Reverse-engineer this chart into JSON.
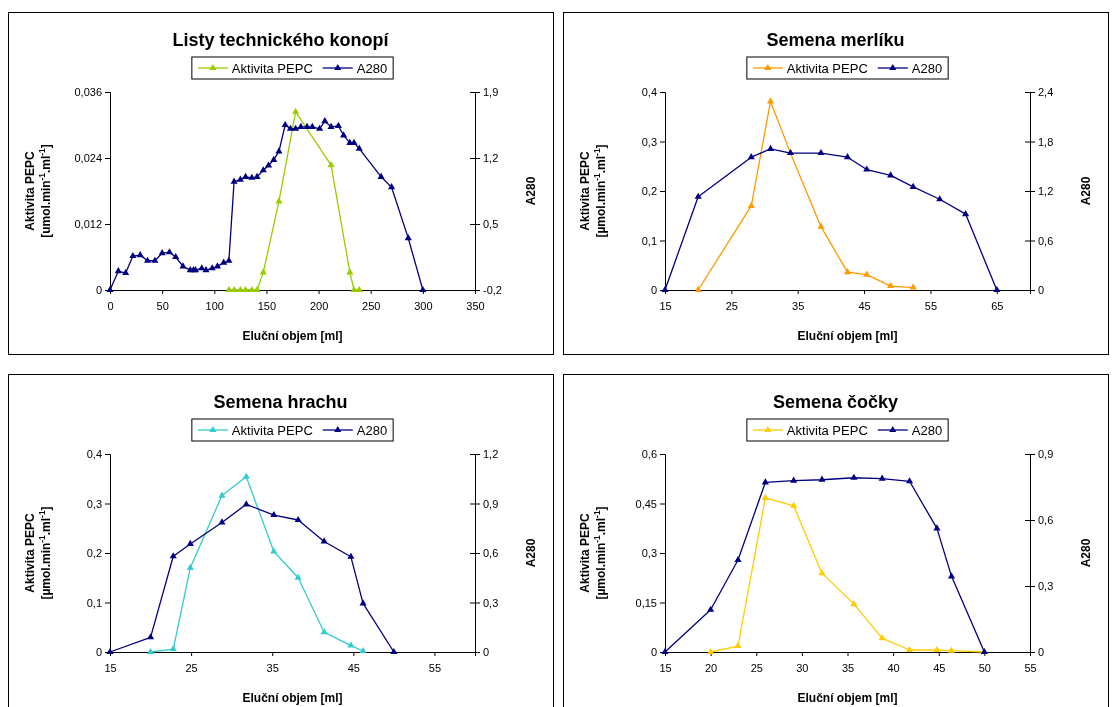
{
  "chart_data": [
    {
      "type": "line",
      "title": "Listy technického konopí",
      "xlabel": "Eluční objem [ml]",
      "ylabel": "Aktivita PEPC\n[umol.min$^{-1}$.ml$^{-1}$]",
      "y2label": "A280",
      "xlim": [
        0,
        350
      ],
      "xticks": [
        0,
        50,
        100,
        150,
        200,
        250,
        300,
        350
      ],
      "ylim": [
        0,
        0.036
      ],
      "yticks": [
        {
          "value": 0,
          "label": "0"
        },
        {
          "value": 0.012,
          "label": "0,012"
        },
        {
          "value": 0.024,
          "label": "0,024"
        },
        {
          "value": 0.036,
          "label": "0,036"
        }
      ],
      "y2lim": [
        -0.2,
        1.9
      ],
      "y2ticks": [
        {
          "value": -0.2,
          "label": "-0,2"
        },
        {
          "value": 0.5,
          "label": "0,5"
        },
        {
          "value": 1.2,
          "label": "1,2"
        },
        {
          "value": 1.9,
          "label": "1,9"
        }
      ],
      "legend": "top",
      "marker": "triangle",
      "grid": false,
      "series": [
        {
          "name": "Aktivita PEPC",
          "color": "#99cc00",
          "x": [
            114,
            119,
            125,
            130,
            136,
            141,
            147,
            162,
            178,
            212,
            230,
            234,
            239
          ],
          "values": [
            0,
            0,
            0,
            0,
            0,
            0,
            0.0032,
            0.0161,
            0.0324,
            0.0227,
            0.0032,
            0,
            0
          ]
        },
        {
          "name": "A280",
          "color": "#000080",
          "axis": "y2",
          "x": [
            0,
            8,
            15,
            22,
            29,
            36,
            43,
            50,
            57,
            63,
            70,
            77,
            80,
            82,
            88,
            92,
            98,
            103,
            109,
            114,
            119,
            125,
            130,
            136,
            141,
            147,
            152,
            157,
            162,
            168,
            173,
            178,
            183,
            189,
            194,
            201,
            206,
            212,
            219,
            224,
            230,
            234,
            239,
            260,
            270,
            286,
            300
          ],
          "values": [
            -0.2,
            0,
            -0.02,
            0.16,
            0.17,
            0.11,
            0.11,
            0.19,
            0.2,
            0.15,
            0.05,
            0.01,
            0.01,
            0.01,
            0.03,
            0.01,
            0.03,
            0.05,
            0.09,
            0.11,
            0.95,
            0.97,
            1,
            0.99,
            1,
            1.07,
            1.12,
            1.18,
            1.27,
            1.55,
            1.51,
            1.51,
            1.53,
            1.53,
            1.53,
            1.51,
            1.59,
            1.53,
            1.54,
            1.44,
            1.36,
            1.36,
            1.3,
            1,
            0.89,
            0.35,
            -0.2
          ]
        }
      ]
    },
    {
      "type": "line",
      "title": "Semena merlíku",
      "xlabel": "Eluční objem [ml]",
      "ylabel": "Aktivita PEPC\n[µmol.min$^{-1}$.ml$^{-1}$]",
      "y2label": "A280",
      "xlim": [
        15,
        70
      ],
      "xticks": [
        15,
        25,
        35,
        45,
        55,
        65
      ],
      "ylim": [
        0,
        0.4
      ],
      "yticks": [
        {
          "value": 0,
          "label": "0"
        },
        {
          "value": 0.1,
          "label": "0,1"
        },
        {
          "value": 0.2,
          "label": "0,2"
        },
        {
          "value": 0.3,
          "label": "0,3"
        },
        {
          "value": 0.4,
          "label": "0,4"
        }
      ],
      "y2lim": [
        0,
        2.4
      ],
      "y2ticks": [
        {
          "value": 0,
          "label": "0"
        },
        {
          "value": 0.6,
          "label": "0,6"
        },
        {
          "value": 1.2,
          "label": "1,2"
        },
        {
          "value": 1.8,
          "label": "1,8"
        },
        {
          "value": 2.4,
          "label": "2,4"
        }
      ],
      "legend": "top",
      "marker": "triangle",
      "grid": false,
      "series": [
        {
          "name": "Aktivita PEPC",
          "color": "#ff9900",
          "x": [
            20,
            28,
            30.9,
            33.9,
            38.5,
            42.5,
            45.4,
            49,
            52.4
          ],
          "values": [
            0,
            0.17,
            0.381,
            0.277,
            0.128,
            0.036,
            0.031,
            0.008,
            0.005
          ]
        },
        {
          "name": "A280",
          "color": "#000080",
          "axis": "y2",
          "x": [
            15,
            20,
            28,
            30.9,
            33.9,
            38.5,
            42.5,
            45.4,
            49,
            52.4,
            56.4,
            60.3,
            65
          ],
          "values": [
            0,
            1.13,
            1.61,
            1.71,
            1.66,
            1.66,
            1.61,
            1.46,
            1.39,
            1.25,
            1.1,
            0.92,
            0
          ]
        }
      ]
    },
    {
      "type": "line",
      "title": "Semena hrachu",
      "xlabel": "Eluční objem [ml]",
      "ylabel": "Aktivita PEPC\n[µmol.min$^{-1}$.ml$^{-1}$]",
      "y2label": "A280",
      "xlim": [
        15,
        60
      ],
      "xticks": [
        15,
        25,
        35,
        45,
        55
      ],
      "ylim": [
        0,
        0.4
      ],
      "yticks": [
        {
          "value": 0,
          "label": "0"
        },
        {
          "value": 0.1,
          "label": "0,1"
        },
        {
          "value": 0.2,
          "label": "0,2"
        },
        {
          "value": 0.3,
          "label": "0,3"
        },
        {
          "value": 0.4,
          "label": "0,4"
        }
      ],
      "y2lim": [
        0,
        1.2
      ],
      "y2ticks": [
        {
          "value": 0,
          "label": "0"
        },
        {
          "value": 0.3,
          "label": "0,3"
        },
        {
          "value": 0.6,
          "label": "0,6"
        },
        {
          "value": 0.9,
          "label": "0,9"
        },
        {
          "value": 1.2,
          "label": "1,2"
        }
      ],
      "legend": "top",
      "marker": "triangle",
      "grid": false,
      "series": [
        {
          "name": "Aktivita PEPC",
          "color": "#33cccc",
          "x": [
            20,
            22.8,
            24.9,
            28.8,
            31.8,
            35.2,
            38.2,
            41.4,
            44.7,
            46.2
          ],
          "values": [
            0,
            0.006,
            0.17,
            0.316,
            0.354,
            0.203,
            0.15,
            0.04,
            0.013,
            0.002
          ]
        },
        {
          "name": "A280",
          "color": "#000080",
          "axis": "y2",
          "x": [
            15,
            20,
            22.8,
            24.9,
            28.8,
            31.8,
            35.2,
            38.2,
            41.4,
            44.7,
            46.2,
            50
          ],
          "values": [
            0,
            0.089,
            0.58,
            0.655,
            0.785,
            0.895,
            0.83,
            0.8,
            0.67,
            0.577,
            0.295,
            0
          ]
        }
      ]
    },
    {
      "type": "line",
      "title": "Semena čočky",
      "xlabel": "Eluční objem [ml]",
      "ylabel": "Aktivita PEPC\n[µmol.min$^{-1}$.ml$^{-1}$]",
      "y2label": "A280",
      "xlim": [
        15,
        55
      ],
      "xticks": [
        15,
        20,
        25,
        30,
        35,
        40,
        45,
        50,
        55
      ],
      "ylim": [
        0,
        0.6
      ],
      "yticks": [
        {
          "value": 0,
          "label": "0"
        },
        {
          "value": 0.15,
          "label": "0,15"
        },
        {
          "value": 0.3,
          "label": "0,3"
        },
        {
          "value": 0.45,
          "label": "0,45"
        },
        {
          "value": 0.6,
          "label": "0,6"
        }
      ],
      "y2lim": [
        0,
        0.9
      ],
      "y2ticks": [
        {
          "value": 0,
          "label": "0"
        },
        {
          "value": 0.3,
          "label": "0,3"
        },
        {
          "value": 0.6,
          "label": "0,6"
        },
        {
          "value": 0.9,
          "label": "0,9"
        }
      ],
      "legend": "top",
      "marker": "triangle",
      "grid": false,
      "series": [
        {
          "name": "Aktivita PEPC",
          "color": "#ffcc00",
          "x": [
            20,
            23,
            26,
            29.1,
            32.2,
            35.7,
            38.8,
            41.8,
            44.8,
            46.4,
            50
          ],
          "values": [
            0,
            0.018,
            0.467,
            0.443,
            0.239,
            0.145,
            0.042,
            0.006,
            0.006,
            0.004,
            0
          ]
        },
        {
          "name": "A280",
          "color": "#000080",
          "axis": "y2",
          "x": [
            15,
            20,
            23,
            26,
            29.1,
            32.2,
            35.7,
            38.8,
            41.8,
            44.8,
            46.4,
            50
          ],
          "values": [
            0,
            0.192,
            0.418,
            0.771,
            0.779,
            0.783,
            0.792,
            0.788,
            0.776,
            0.562,
            0.344,
            0
          ]
        }
      ]
    }
  ]
}
